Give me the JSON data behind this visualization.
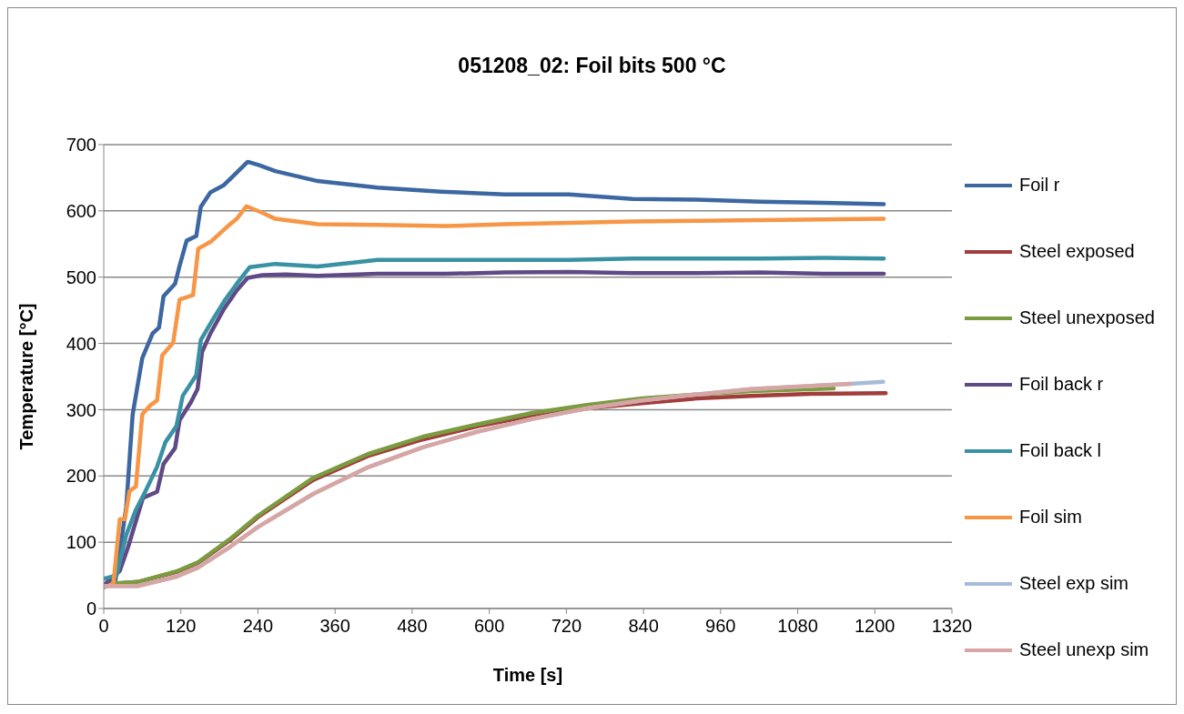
{
  "chart_data": {
    "type": "line",
    "title": "051208_02: Foil bits 500 °C",
    "xlabel": "Time [s]",
    "ylabel": "Temperature [°C]",
    "xlim": [
      0,
      1320
    ],
    "xticks": [
      0,
      120,
      240,
      360,
      480,
      600,
      720,
      840,
      960,
      1080,
      1200,
      1320
    ],
    "ylim": [
      0,
      700
    ],
    "yticks": [
      0,
      100,
      200,
      300,
      400,
      500,
      600,
      700
    ],
    "grid": "y",
    "legend": "right",
    "marker": "none",
    "line_style": "solid",
    "series": [
      {
        "name": "Foil r",
        "color": "#3c67a0",
        "x": [
          0,
          18,
          35,
          45,
          60,
          76,
          86,
          93,
          111,
          118,
          129,
          144,
          151,
          166,
          187,
          202,
          224,
          242,
          267,
          333,
          426,
          525,
          624,
          724,
          823,
          923,
          1022,
          1121,
          1214
        ],
        "values": [
          32,
          41,
          153,
          293,
          378,
          415,
          424,
          471,
          490,
          517,
          555,
          562,
          606,
          628,
          639,
          653,
          674,
          669,
          660,
          645,
          635,
          629,
          625,
          625,
          618,
          617,
          614,
          612,
          610
        ]
      },
      {
        "name": "Steel exposed",
        "color": "#a13d3b",
        "x": [
          0,
          53,
          113,
          147,
          198,
          240,
          326,
          411,
          496,
          582,
          667,
          752,
          838,
          923,
          1008,
          1100,
          1217
        ],
        "values": [
          36,
          40,
          55,
          69,
          104,
          138,
          194,
          230,
          255,
          275,
          291,
          302,
          310,
          317,
          321,
          324,
          325
        ]
      },
      {
        "name": "Steel unexposed",
        "color": "#7b9b40",
        "x": [
          0,
          53,
          113,
          147,
          198,
          240,
          326,
          411,
          496,
          582,
          667,
          752,
          838,
          923,
          1008,
          1136
        ],
        "values": [
          37,
          40,
          56,
          70,
          106,
          140,
          197,
          233,
          259,
          278,
          295,
          307,
          317,
          323,
          328,
          332
        ]
      },
      {
        "name": "Foil back r",
        "color": "#604a86",
        "x": [
          0,
          25,
          38,
          61,
          83,
          93,
          111,
          118,
          136,
          146,
          153,
          166,
          187,
          207,
          224,
          247,
          283,
          333,
          426,
          532,
          624,
          724,
          823,
          923,
          1022,
          1121,
          1214
        ],
        "values": [
          35,
          57,
          93,
          167,
          176,
          218,
          242,
          284,
          312,
          331,
          387,
          415,
          452,
          480,
          499,
          503,
          504,
          502,
          505,
          505,
          507,
          508,
          506,
          506,
          507,
          505,
          505
        ]
      },
      {
        "name": "Foil back l",
        "color": "#3892a4",
        "x": [
          0,
          20,
          35,
          50,
          65,
          83,
          96,
          113,
          123,
          144,
          151,
          171,
          189,
          207,
          227,
          267,
          333,
          426,
          532,
          624,
          724,
          823,
          923,
          1022,
          1121,
          1214
        ],
        "values": [
          45,
          50,
          111,
          149,
          177,
          214,
          251,
          275,
          321,
          352,
          405,
          438,
          466,
          490,
          515,
          520,
          516,
          526,
          526,
          526,
          526,
          528,
          528,
          528,
          529,
          528
        ]
      },
      {
        "name": "Foil sim",
        "color": "#f79646",
        "x": [
          0,
          15,
          25,
          33,
          40,
          50,
          60,
          73,
          83,
          91,
          108,
          118,
          139,
          147,
          166,
          192,
          207,
          222,
          247,
          267,
          333,
          426,
          532,
          624,
          724,
          823,
          923,
          1022,
          1121,
          1214
        ],
        "values": [
          32,
          37,
          135,
          135,
          177,
          184,
          293,
          307,
          314,
          382,
          401,
          466,
          473,
          543,
          553,
          576,
          588,
          607,
          597,
          588,
          580,
          579,
          577,
          580,
          582,
          584,
          585,
          586,
          587,
          588
        ]
      },
      {
        "name": "Steel exp sim",
        "color": "#a7bbd9",
        "x": [
          0,
          53,
          113,
          147,
          198,
          240,
          326,
          411,
          496,
          582,
          667,
          752,
          838,
          923,
          1008,
          1162,
          1213
        ],
        "values": [
          34,
          34,
          48,
          62,
          94,
          123,
          173,
          213,
          243,
          267,
          286,
          302,
          314,
          323,
          331,
          339,
          342
        ]
      },
      {
        "name": "Steel unexp sim",
        "color": "#d7a6a4",
        "x": [
          0,
          53,
          113,
          147,
          198,
          240,
          326,
          411,
          496,
          582,
          667,
          752,
          838,
          923,
          1008,
          1162
        ],
        "values": [
          34,
          34,
          48,
          62,
          94,
          123,
          173,
          213,
          243,
          267,
          286,
          302,
          314,
          323,
          331,
          339
        ]
      }
    ]
  }
}
